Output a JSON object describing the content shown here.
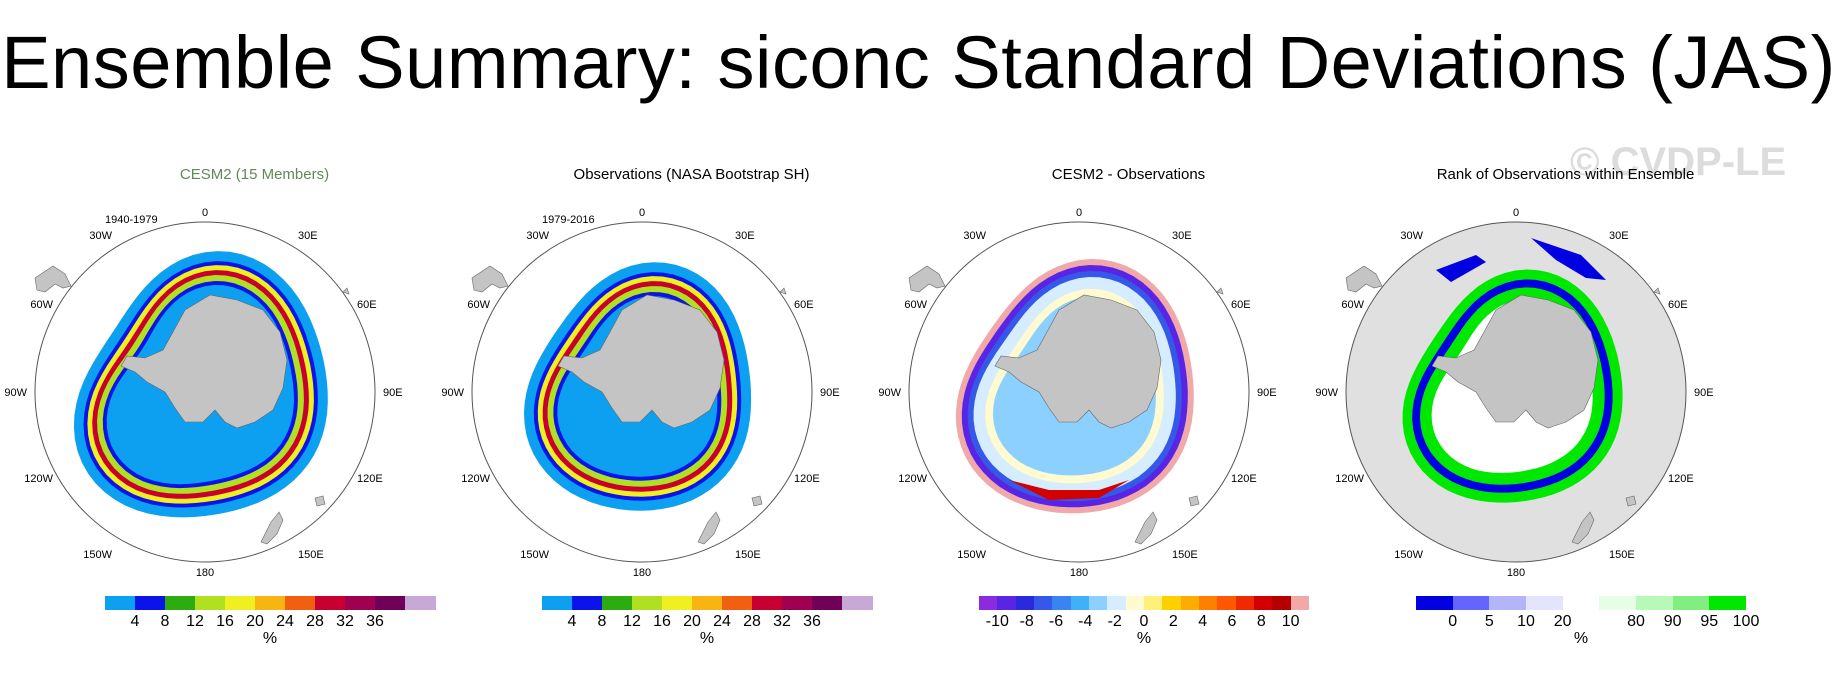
{
  "title": "Ensemble Summary: siconc Standard Deviations (JAS)",
  "watermark": "© CVDP-LE",
  "colors": {
    "land": "#c4c4c4",
    "title_green": "#5e8a56",
    "rank_background": "#e0e0e0",
    "std_scale": [
      "#0ea0f0",
      "#0a14ea",
      "#2cac10",
      "#b0e020",
      "#f0f020",
      "#f8b410",
      "#f06010",
      "#c80032",
      "#a00050",
      "#700058",
      "#c8a8d4"
    ],
    "diff_scale": [
      "#8a2be2",
      "#5a24e4",
      "#2a2adc",
      "#3558e8",
      "#3a84f2",
      "#40b0f8",
      "#8cd0ff",
      "#d6ecff",
      "#fffad0",
      "#fff07a",
      "#ffd000",
      "#ffac00",
      "#ff8000",
      "#ff5800",
      "#f02a00",
      "#d20000",
      "#b40000",
      "#f0a8a8"
    ],
    "rank_scale": [
      "#0000e0",
      "#6464ff",
      "#b4b4f8",
      "#e4e4fc",
      "#ffffff",
      "#e6fde6",
      "#b8f8b8",
      "#80ee80",
      "#00e800"
    ]
  },
  "map_labels": {
    "lon_labels": [
      "0",
      "30E",
      "60E",
      "90E",
      "120E",
      "150E",
      "180",
      "150W",
      "120W",
      "90W",
      "60W",
      "30W"
    ]
  },
  "chart_data": [
    {
      "type": "heatmap",
      "title": "CESM2 (15 Members)",
      "period": "1940-1979",
      "field": "siconc standard deviation",
      "colorbar": {
        "ticks": [
          "4",
          "8",
          "12",
          "16",
          "20",
          "24",
          "28",
          "32",
          "36"
        ],
        "unit": "%",
        "levels": [
          4,
          8,
          12,
          16,
          20,
          24,
          28,
          32,
          36
        ]
      }
    },
    {
      "type": "heatmap",
      "title": "Observations (NASA Bootstrap SH)",
      "period": "1979-2016",
      "field": "siconc standard deviation",
      "colorbar": {
        "ticks": [
          "4",
          "8",
          "12",
          "16",
          "20",
          "24",
          "28",
          "32",
          "36"
        ],
        "unit": "%",
        "levels": [
          4,
          8,
          12,
          16,
          20,
          24,
          28,
          32,
          36
        ]
      }
    },
    {
      "type": "heatmap",
      "title": "CESM2 - Observations",
      "period": "",
      "field": "difference",
      "colorbar": {
        "ticks": [
          "-10",
          "-8",
          "-6",
          "-4",
          "-2",
          "0",
          "2",
          "4",
          "6",
          "8",
          "10"
        ],
        "unit": "%",
        "levels": [
          -10,
          -8,
          -6,
          -4,
          -2,
          0,
          2,
          4,
          6,
          8,
          10
        ]
      }
    },
    {
      "type": "heatmap",
      "title": "Rank of Observations within Ensemble",
      "period": "",
      "field": "rank",
      "colorbar": {
        "ticks": [
          "0",
          "5",
          "10",
          "20",
          "80",
          "90",
          "95",
          "100"
        ],
        "unit": "%",
        "levels": [
          0,
          5,
          10,
          20,
          80,
          90,
          95,
          100
        ]
      }
    }
  ]
}
